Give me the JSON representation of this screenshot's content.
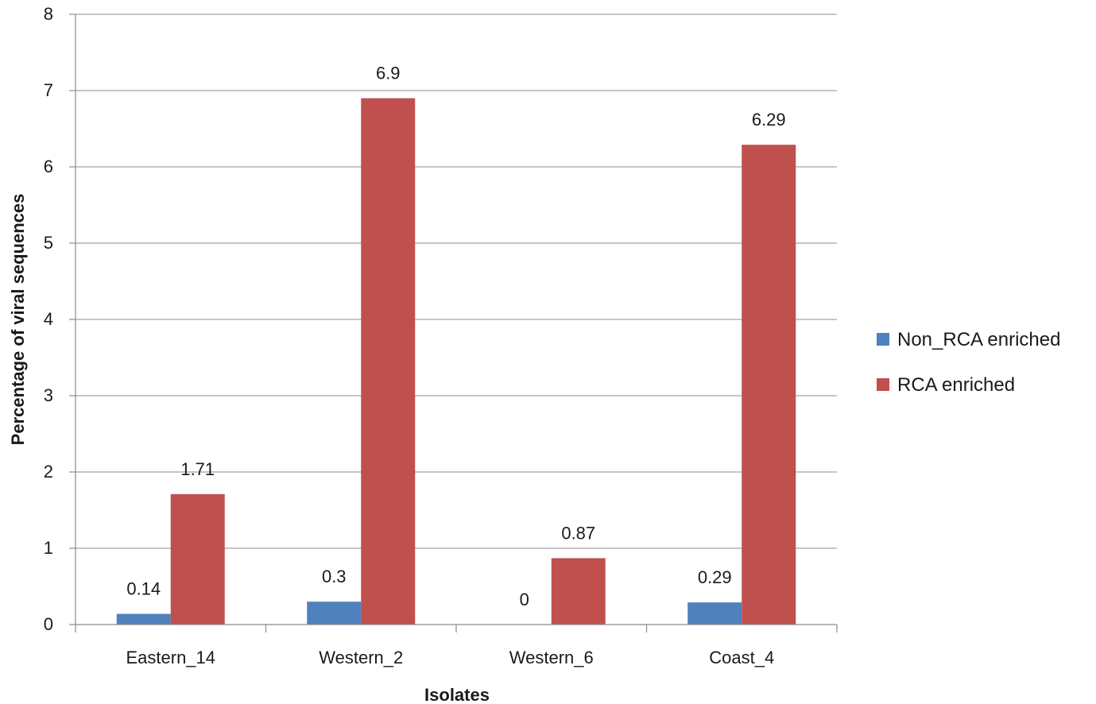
{
  "chart_data": {
    "type": "bar",
    "title": "",
    "xlabel": "Isolates",
    "ylabel": "Percentage  of viral sequences",
    "categories": [
      "Eastern_14",
      "Western_2",
      "Western_6",
      "Coast_4"
    ],
    "series": [
      {
        "name": "Non_RCA enriched",
        "color": "#4f81bd",
        "values": [
          0.14,
          0.3,
          0,
          0.29
        ],
        "labels": [
          "0.14",
          "0.3",
          "0",
          "0.29"
        ]
      },
      {
        "name": "RCA enriched",
        "color": "#c0504d",
        "values": [
          1.71,
          6.9,
          0.87,
          6.29
        ],
        "labels": [
          "1.71",
          "6.9",
          "0.87",
          "6.29"
        ]
      }
    ],
    "ylim": [
      0,
      8
    ],
    "yticks": [
      0,
      1,
      2,
      3,
      4,
      5,
      6,
      7,
      8
    ],
    "grid": true,
    "legend_position": "right"
  }
}
